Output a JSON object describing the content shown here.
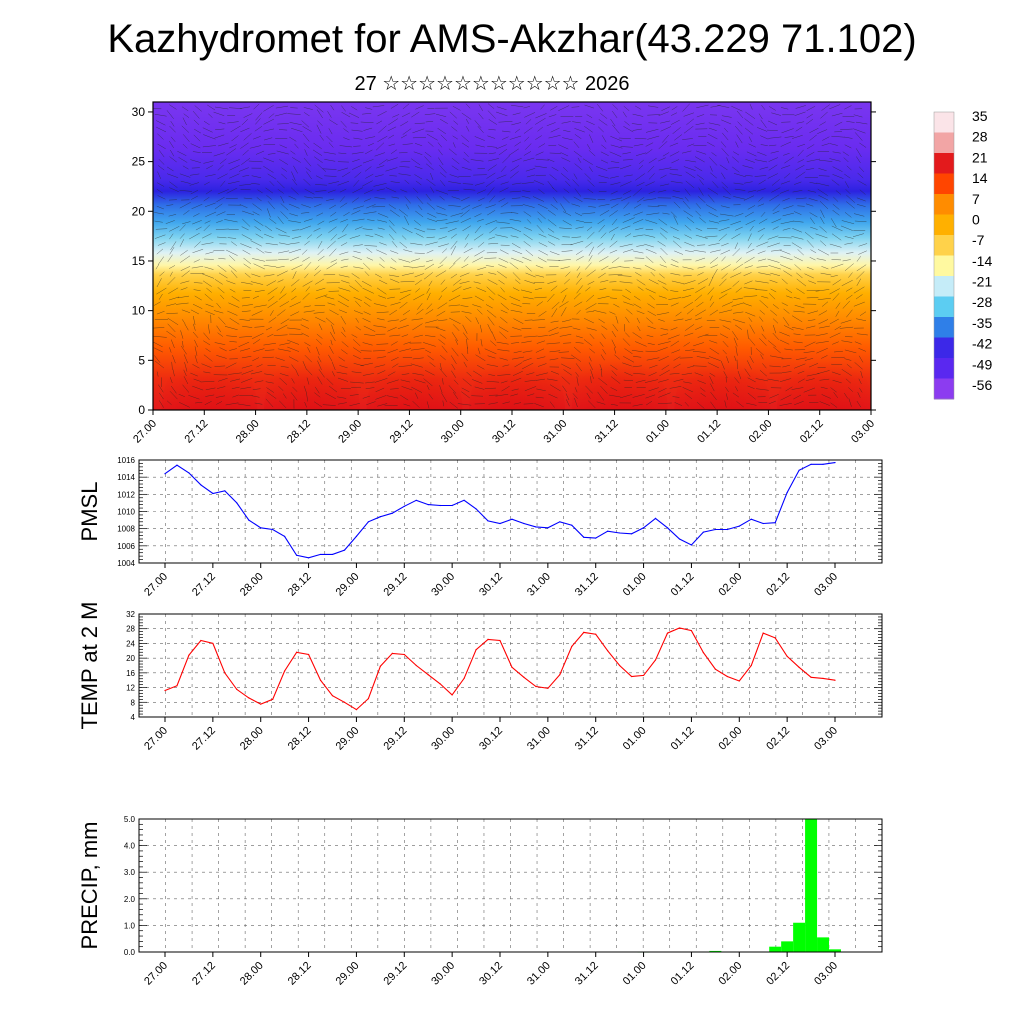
{
  "title": "Kazhydromet for AMS-Akzhar(43.229 71.102)",
  "subtitle": "27 ☆☆☆☆☆☆☆☆☆☆☆ 2026",
  "time_labels": [
    "27.00",
    "27.12",
    "28.00",
    "28.12",
    "29.00",
    "29.12",
    "30.00",
    "30.12",
    "31.00",
    "31.12",
    "01.00",
    "01.12",
    "02.00",
    "02.12",
    "03.00"
  ],
  "chart_data": [
    {
      "type": "heatmap",
      "panel": "temperature-height cross-section with wind vectors",
      "ylim": [
        0,
        31
      ],
      "yticks": [
        0,
        5,
        10,
        15,
        20,
        25,
        30
      ],
      "colorbar": {
        "labels": [
          "35",
          "28",
          "21",
          "14",
          "7",
          "0",
          "-7",
          "-14",
          "-21",
          "-28",
          "-35",
          "-42",
          "-49",
          "-56"
        ],
        "range": [
          -60,
          38
        ],
        "colors": [
          "#fbe4e8",
          "#f2a5a5",
          "#e31a1c",
          "#ff4500",
          "#ff8c00",
          "#ffb000",
          "#ffd24a",
          "#fff9a0",
          "#c5ecf8",
          "#5ccdf2",
          "#2f7fe8",
          "#3c28e8",
          "#5a28f0",
          "#8c3cf0"
        ]
      }
    },
    {
      "type": "line",
      "ylabel": "PMSL",
      "ylim": [
        1004,
        1016
      ],
      "yticks": [
        1004,
        1006,
        1008,
        1010,
        1012,
        1014,
        1016
      ],
      "color": "#0000ff",
      "values": [
        1014.4,
        1015.4,
        1014.5,
        1013.1,
        1012.1,
        1012.4,
        1011.0,
        1009.0,
        1008.1,
        1007.9,
        1007.1,
        1004.9,
        1004.6,
        1005.0,
        1005.0,
        1005.5,
        1007.1,
        1008.8,
        1009.4,
        1009.8,
        1010.6,
        1011.3,
        1010.8,
        1010.7,
        1010.7,
        1011.3,
        1010.3,
        1008.9,
        1008.6,
        1009.1,
        1008.6,
        1008.2,
        1008.1,
        1008.8,
        1008.4,
        1007.0,
        1006.9,
        1007.7,
        1007.5,
        1007.4,
        1008.1,
        1009.2,
        1008.1,
        1006.8,
        1006.1,
        1007.6,
        1007.9,
        1007.9,
        1008.3,
        1009.1,
        1008.6,
        1008.7,
        1012.2,
        1014.8,
        1015.5,
        1015.5,
        1015.7
      ]
    },
    {
      "type": "line",
      "ylabel": "TEMP at 2 M",
      "ylim": [
        4,
        32
      ],
      "yticks": [
        4,
        8,
        12,
        16,
        20,
        24,
        28,
        32
      ],
      "color": "#ff0000",
      "values": [
        11.2,
        12.5,
        20.8,
        24.8,
        24.0,
        16.0,
        11.5,
        9.2,
        7.5,
        8.8,
        16.5,
        21.6,
        21.0,
        14.0,
        9.8,
        8.0,
        6.0,
        9.0,
        17.8,
        21.3,
        21.0,
        18.0,
        15.5,
        13.0,
        10.0,
        14.5,
        22.3,
        25.1,
        24.8,
        17.5,
        14.8,
        12.3,
        11.8,
        15.5,
        23.2,
        27.0,
        26.5,
        22.0,
        18.0,
        15.0,
        15.3,
        19.5,
        26.8,
        28.2,
        27.5,
        21.5,
        17.0,
        15.0,
        13.8,
        18.0,
        26.8,
        25.5,
        20.5,
        17.5,
        14.8,
        14.5,
        14.0
      ]
    },
    {
      "type": "bar",
      "ylabel": "PRECIP, mm",
      "ylim": [
        0,
        5
      ],
      "yticks": [
        "0.0",
        "1.0",
        "2.0",
        "3.0",
        "4.0",
        "5.0"
      ],
      "color": "#00ff00",
      "bars": [
        {
          "step": 40,
          "value": 0.01
        },
        {
          "step": 46,
          "value": 0.04
        },
        {
          "step": 51,
          "value": 0.2
        },
        {
          "step": 52,
          "value": 0.4
        },
        {
          "step": 53,
          "value": 1.1
        },
        {
          "step": 54,
          "value": 5.0
        },
        {
          "step": 55,
          "value": 0.55
        },
        {
          "step": 56,
          "value": 0.1
        }
      ]
    }
  ]
}
